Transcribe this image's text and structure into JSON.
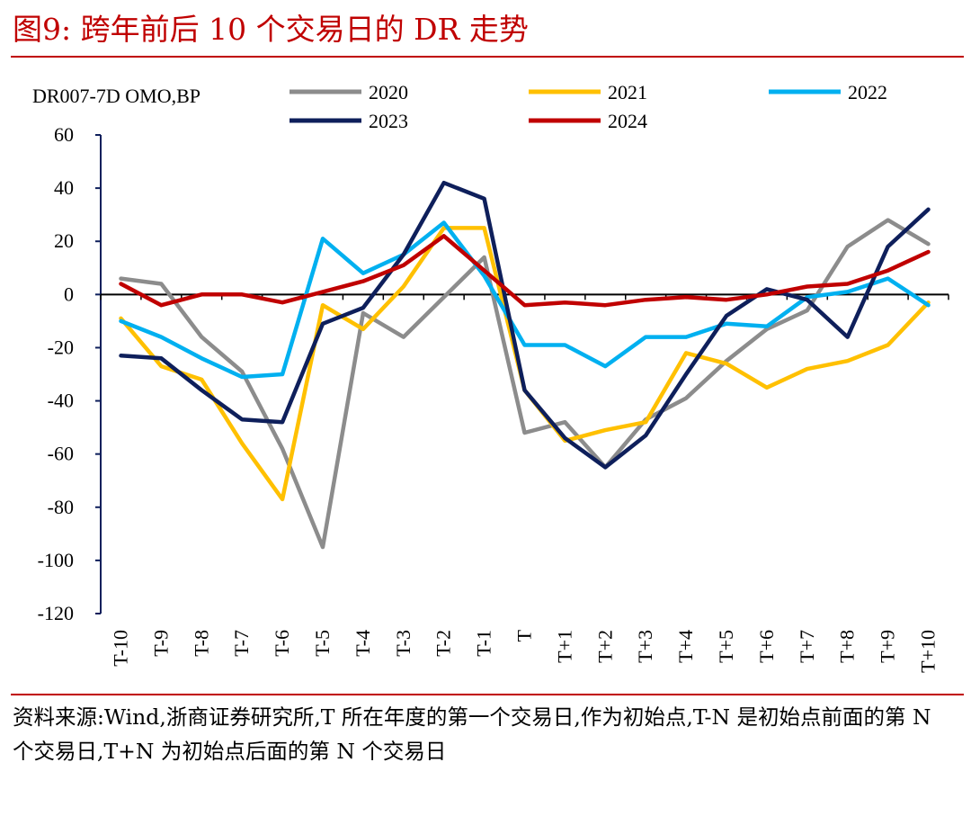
{
  "title": "图9:  跨年前后 10 个交易日的 DR 走势",
  "source_note": "资料来源:Wind,浙商证券研究所,T 所在年度的第一个交易日,作为初始点,T-N 是初始点前面的第 N 个交易日,T+N 为初始点后面的第 N 个交易日",
  "colors": {
    "accent": "#c00000"
  },
  "chart_data": {
    "type": "line",
    "ylabel": "DR007-7D OMO,BP",
    "xlabel": "",
    "ylim": [
      -120,
      60
    ],
    "yticks": [
      60,
      40,
      20,
      0,
      -20,
      -40,
      -60,
      -80,
      -100,
      -120
    ],
    "grid": false,
    "legend_position": "top",
    "categories": [
      "T-10",
      "T-9",
      "T-8",
      "T-7",
      "T-6",
      "T-5",
      "T-4",
      "T-3",
      "T-2",
      "T-1",
      "T",
      "T+1",
      "T+2",
      "T+3",
      "T+4",
      "T+5",
      "T+6",
      "T+7",
      "T+8",
      "T+9",
      "T+10"
    ],
    "series": [
      {
        "name": "2020",
        "color": "#8c8c8c",
        "values": [
          6,
          4,
          -16,
          -29,
          -58,
          -95,
          -7,
          -16,
          -1,
          14,
          -52,
          -48,
          -65,
          -47,
          -39,
          -25,
          -13,
          -6,
          18,
          28,
          19
        ]
      },
      {
        "name": "2021",
        "color": "#ffc000",
        "values": [
          -9,
          -27,
          -32,
          -56,
          -77,
          -4,
          -13,
          3,
          25,
          25,
          -36,
          -55,
          -51,
          -48,
          -22,
          -26,
          -35,
          -28,
          -25,
          -19,
          -3
        ]
      },
      {
        "name": "2022",
        "color": "#00b0f0",
        "values": [
          -10,
          -16,
          -24,
          -31,
          -30,
          21,
          8,
          15,
          27,
          7,
          -19,
          -19,
          -27,
          -16,
          -16,
          -11,
          -12,
          -1,
          1,
          6,
          -4
        ]
      },
      {
        "name": "2023",
        "color": "#0e1f5b",
        "values": [
          -23,
          -24,
          -36,
          -47,
          -48,
          -11,
          -5,
          15,
          42,
          36,
          -36,
          -54,
          -65,
          -53,
          -30,
          -8,
          2,
          -2,
          -16,
          18,
          32
        ]
      },
      {
        "name": "2024",
        "color": "#c00000",
        "values": [
          4,
          -4,
          0,
          0,
          -3,
          1,
          5,
          11,
          22,
          9,
          -4,
          -3,
          -4,
          -2,
          -1,
          -2,
          0,
          3,
          4,
          9,
          16
        ]
      }
    ]
  }
}
